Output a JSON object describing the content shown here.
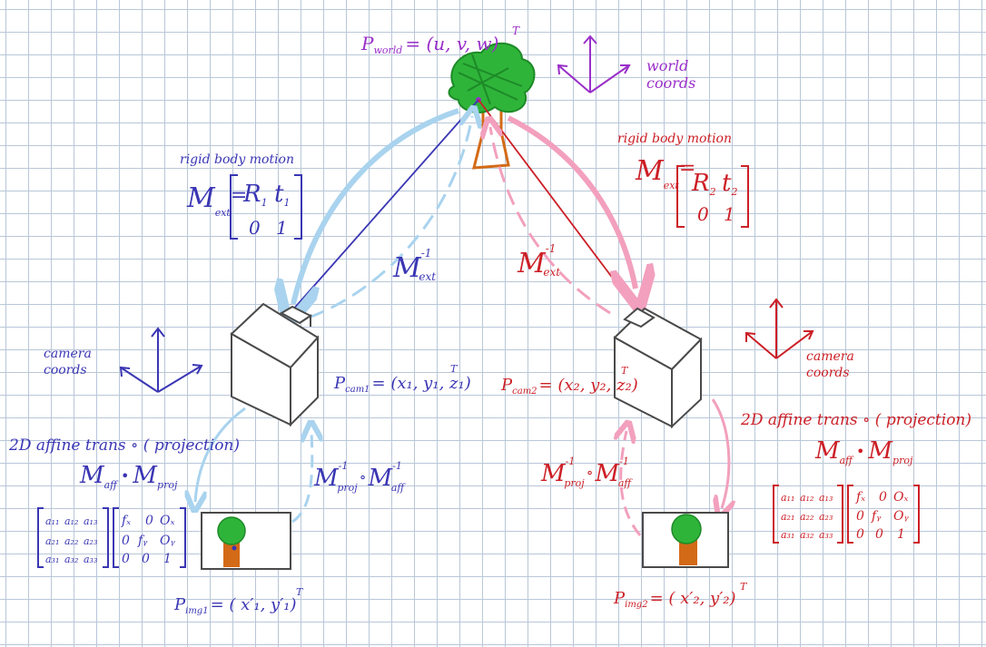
{
  "colors": {
    "world": "#9a2fc9",
    "left": "#3a36b4",
    "right": "#cc1f26",
    "light_blue": "#a9d3ee",
    "pink": "#f2a0bd",
    "tree_green": "#2fb43a",
    "trunk": "#d36a17",
    "camera": "#4a4a4a"
  },
  "world": {
    "point_label": "P",
    "point_sub": "world",
    "point_eq": "= (u, v, w)",
    "T": "T",
    "coords_line1": "world",
    "coords_line2": "coords"
  },
  "left": {
    "rigid_label": "rigid body motion",
    "M": "M",
    "ext_sub": "ext",
    "eq": "=",
    "matrix": {
      "a": "R",
      "a_sub": "1",
      "b": "t",
      "b_sub": "1",
      "c": "0",
      "d": "1"
    },
    "inverse": {
      "M": "M",
      "sup": "-1",
      "sub": "ext"
    },
    "camera_coords_line1": "camera",
    "camera_coords_line2": "coords",
    "pcam_label": "P",
    "pcam_sub": "cam1",
    "pcam_eq": "= (x₁, y₁, z₁)",
    "T": "T",
    "affine_label": "2D affine trans ∘ ( projection)",
    "affine_M1": "M",
    "affine_sub1": "aff",
    "dot": "•",
    "affine_M2": "M",
    "affine_sub2": "proj",
    "a_matrix": [
      [
        "a₁₁",
        "a₁₂",
        "a₁₃"
      ],
      [
        "a₂₁",
        "a₂₂",
        "a₂₃"
      ],
      [
        "a₃₁",
        "a₃₂",
        "a₃₃"
      ]
    ],
    "k_matrix": [
      [
        "fₓ",
        "0",
        "Oₓ"
      ],
      [
        "0",
        "fᵧ",
        "Oᵧ"
      ],
      [
        "0",
        "0",
        "1"
      ]
    ],
    "inv_proj": {
      "M1": "M",
      "sup1": "-1",
      "sub1": "proj",
      "op": "∘",
      "M2": "M",
      "sup2": "-1",
      "sub2": "aff"
    },
    "pimg_label": "P",
    "pimg_sub": "img1",
    "pimg_eq": "= ( x′₁, y′₁)",
    "pimg_T": "T"
  },
  "right": {
    "rigid_label": "rigid body motion",
    "M": "M",
    "ext_sub": "ext",
    "eq": "=",
    "matrix": {
      "a": "R",
      "a_sub": "2",
      "b": "t",
      "b_sub": "2",
      "c": "0",
      "d": "1"
    },
    "inverse": {
      "M": "M",
      "sup": "-1",
      "sub": "ext"
    },
    "camera_coords_line1": "camera",
    "camera_coords_line2": "coords",
    "pcam_label": "P",
    "pcam_sub": "cam2",
    "pcam_eq": "= (x₂, y₂, z₂)",
    "T": "T",
    "affine_label": "2D affine trans ∘ ( projection)",
    "affine_M1": "M",
    "affine_sub1": "aff",
    "dot": "•",
    "affine_M2": "M",
    "affine_sub2": "proj",
    "a_matrix": [
      [
        "a₁₁",
        "a₁₂",
        "a₁₃"
      ],
      [
        "a₂₁",
        "a₂₂",
        "a₂₃"
      ],
      [
        "a₃₁",
        "a₃₂",
        "a₃₃"
      ]
    ],
    "k_matrix": [
      [
        "fₓ",
        "0",
        "Oₓ"
      ],
      [
        "0",
        "fᵧ",
        "Oᵧ"
      ],
      [
        "0",
        "0",
        "1"
      ]
    ],
    "inv_proj": {
      "M1": "M",
      "sup1": "-1",
      "sub1": "proj",
      "op": "∘",
      "M2": "M",
      "sup2": "-1",
      "sub2": "aff"
    },
    "pimg_label": "P",
    "pimg_sub": "img2",
    "pimg_eq": "= ( x′₂, y′₂)",
    "pimg_T": "T"
  }
}
